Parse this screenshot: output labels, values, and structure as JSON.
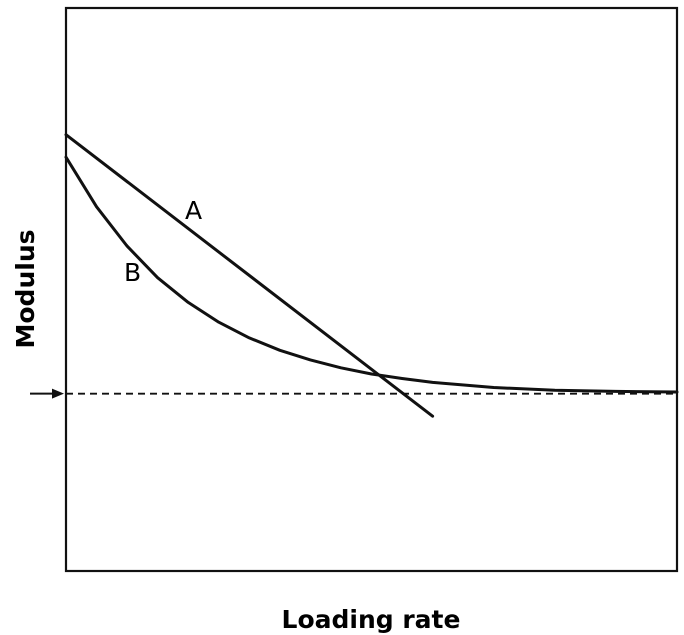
{
  "chart_data": {
    "type": "line",
    "xlabel": "Loading rate",
    "ylabel": "Modulus",
    "xlim": [
      0,
      10
    ],
    "ylim": [
      0,
      10
    ],
    "grid": false,
    "legend": "none",
    "series": [
      {
        "name": "A",
        "style": "solid",
        "color": "#111111",
        "x": [
          0,
          6
        ],
        "y": [
          7.75,
          2.75
        ]
      },
      {
        "name": "B",
        "style": "solid",
        "color": "#111111",
        "x": [
          0,
          0.5,
          1,
          1.5,
          2,
          2.5,
          3,
          3.5,
          4,
          4.5,
          5,
          5.5,
          6,
          7,
          8,
          9,
          10
        ],
        "y": [
          7.35,
          6.47,
          5.77,
          5.21,
          4.77,
          4.42,
          4.14,
          3.92,
          3.75,
          3.61,
          3.5,
          3.42,
          3.35,
          3.26,
          3.21,
          3.19,
          3.18
        ]
      },
      {
        "name": "",
        "style": "dashed",
        "color": "#111111",
        "x": [
          0,
          10
        ],
        "y": [
          3.15,
          3.15
        ]
      }
    ],
    "marker": {
      "type": "arrow",
      "name": "asymptote-arrow",
      "points_to_y": 3.15
    }
  }
}
